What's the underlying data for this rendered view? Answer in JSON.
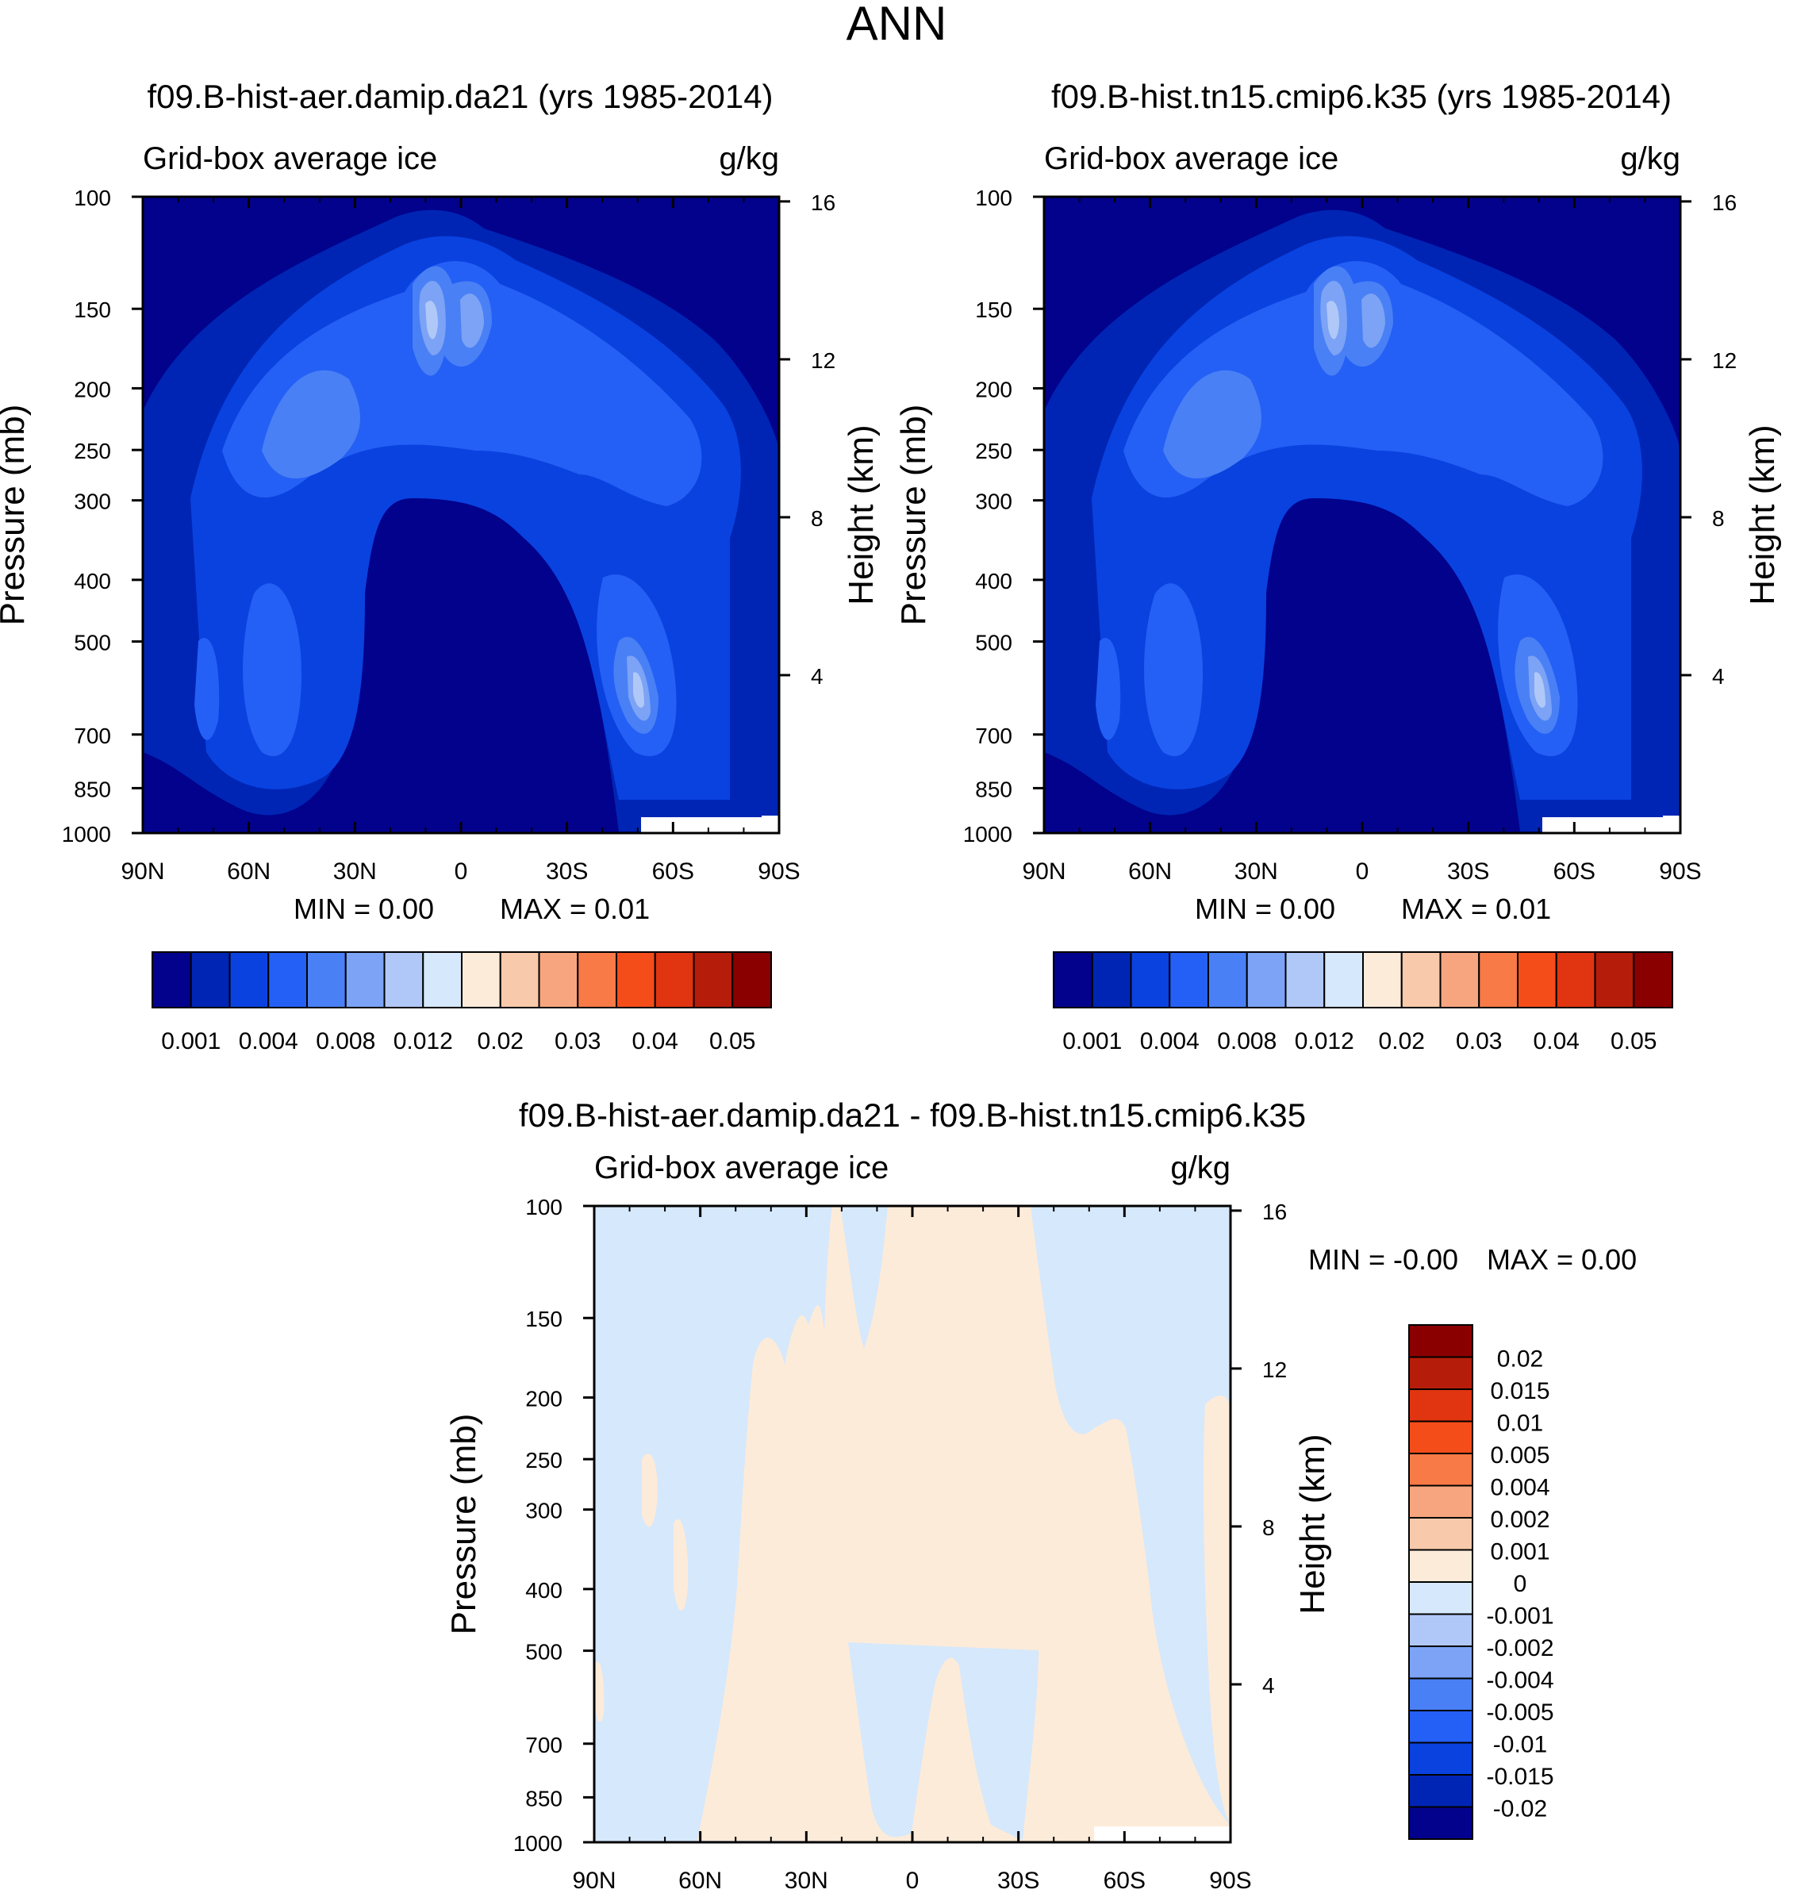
{
  "title": "ANN",
  "colors": {
    "scale": [
      "#02028c",
      "#0025b4",
      "#0a42e0",
      "#2460f5",
      "#4a80f5",
      "#7ca3f5",
      "#b0c8f8",
      "#d6e8fb",
      "#fdebd9",
      "#f8c9ab",
      "#f7a57e",
      "#f77a47",
      "#f54d1a",
      "#e03510",
      "#b51d0a",
      "#8a0000"
    ],
    "white": "#ffffff"
  },
  "chart_data": [
    {
      "type": "heatmap",
      "id": "panel1",
      "title": "f09.B-hist-aer.damip.da21 (yrs 1985-2014)",
      "left_label": "Grid-box average ice",
      "right_label": "g/kg",
      "xlabel": "",
      "ylabel": "Pressure (mb)",
      "y2label": "Height (km)",
      "x_ticks": [
        "90N",
        "60N",
        "30N",
        "0",
        "30S",
        "60S",
        "90S"
      ],
      "y_ticks": [
        "100",
        "150",
        "200",
        "250",
        "300",
        "400",
        "500",
        "700",
        "850",
        "1000"
      ],
      "y_tick_values": [
        100,
        150,
        200,
        250,
        300,
        400,
        500,
        700,
        850,
        1000
      ],
      "y2_ticks": [
        "16",
        "12",
        "8",
        "4"
      ],
      "y2_tick_values": [
        16,
        12,
        8,
        4
      ],
      "xlim": [
        90,
        -90
      ],
      "ylim": [
        1000,
        100
      ],
      "min_text": "MIN =   0.00",
      "max_text": "MAX =   0.01",
      "colorbar_labels": [
        "0.001",
        "0.004",
        "0.008",
        "0.012",
        "0.02",
        "0.03",
        "0.04",
        "0.05"
      ]
    },
    {
      "type": "heatmap",
      "id": "panel2",
      "title": "f09.B-hist.tn15.cmip6.k35 (yrs 1985-2014)",
      "left_label": "Grid-box average ice",
      "right_label": "g/kg",
      "xlabel": "",
      "ylabel": "Pressure (mb)",
      "y2label": "Height (km)",
      "x_ticks": [
        "90N",
        "60N",
        "30N",
        "0",
        "30S",
        "60S",
        "90S"
      ],
      "y_ticks": [
        "100",
        "150",
        "200",
        "250",
        "300",
        "400",
        "500",
        "700",
        "850",
        "1000"
      ],
      "y_tick_values": [
        100,
        150,
        200,
        250,
        300,
        400,
        500,
        700,
        850,
        1000
      ],
      "y2_ticks": [
        "16",
        "12",
        "8",
        "4"
      ],
      "y2_tick_values": [
        16,
        12,
        8,
        4
      ],
      "xlim": [
        90,
        -90
      ],
      "ylim": [
        1000,
        100
      ],
      "min_text": "MIN =   0.00",
      "max_text": "MAX =   0.01",
      "colorbar_labels": [
        "0.001",
        "0.004",
        "0.008",
        "0.012",
        "0.02",
        "0.03",
        "0.04",
        "0.05"
      ]
    },
    {
      "type": "heatmap",
      "id": "panel3",
      "title": "f09.B-hist-aer.damip.da21 - f09.B-hist.tn15.cmip6.k35",
      "left_label": "Grid-box average ice",
      "right_label": "g/kg",
      "xlabel": "",
      "ylabel": "Pressure (mb)",
      "y2label": "Height (km)",
      "x_ticks": [
        "90N",
        "60N",
        "30N",
        "0",
        "30S",
        "60S",
        "90S"
      ],
      "y_ticks": [
        "100",
        "150",
        "200",
        "250",
        "300",
        "400",
        "500",
        "700",
        "850",
        "1000"
      ],
      "y_tick_values": [
        100,
        150,
        200,
        250,
        300,
        400,
        500,
        700,
        850,
        1000
      ],
      "y2_ticks": [
        "16",
        "12",
        "8",
        "4"
      ],
      "y2_tick_values": [
        16,
        12,
        8,
        4
      ],
      "xlim": [
        90,
        -90
      ],
      "ylim": [
        1000,
        100
      ],
      "min_text": "MIN =  -0.00",
      "max_text": "MAX =   0.00",
      "colorbar_labels": [
        "0.02",
        "0.015",
        "0.01",
        "0.005",
        "0.004",
        "0.002",
        "0.001",
        "0",
        "-0.001",
        "-0.002",
        "-0.004",
        "-0.005",
        "-0.01",
        "-0.015",
        "-0.02"
      ]
    }
  ]
}
